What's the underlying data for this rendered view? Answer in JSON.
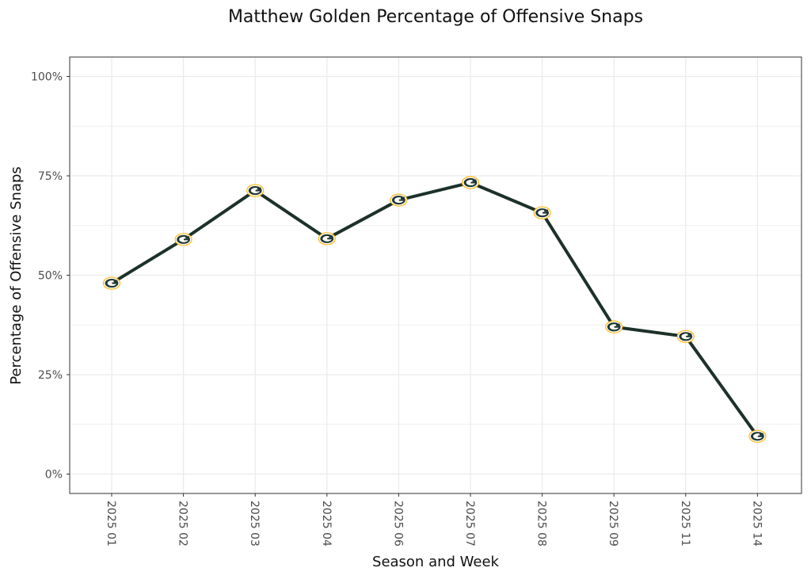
{
  "chart_data": {
    "type": "line",
    "title": "Matthew Golden Percentage of Offensive Snaps",
    "xlabel": "Season and Week",
    "ylabel": "Percentage of Offensive Snaps",
    "categories": [
      "2025 01",
      "2025 02",
      "2025 03",
      "2025 04",
      "2025 06",
      "2025 07",
      "2025 08",
      "2025 09",
      "2025 11",
      "2025 14"
    ],
    "series": [
      {
        "values": [
          0.48,
          0.59,
          0.713,
          0.592,
          0.689,
          0.733,
          0.657,
          0.37,
          0.346,
          0.095
        ]
      }
    ],
    "ylim": [
      -0.048,
      1.05
    ],
    "yticks": [
      0,
      0.25,
      0.5,
      0.75,
      1.0
    ],
    "ytick_labels": [
      "0%",
      "25%",
      "50%",
      "75%",
      "100%"
    ],
    "grid": true,
    "legend": "none",
    "colors": {
      "line": "#1d3128",
      "marker_fill": "#ffffff",
      "marker_ring": "#203731",
      "marker_edge": "#ffb612",
      "grid": "#ebebeb",
      "panel_border": "#333333"
    },
    "marker_icon": "packers-g-logo-icon"
  }
}
